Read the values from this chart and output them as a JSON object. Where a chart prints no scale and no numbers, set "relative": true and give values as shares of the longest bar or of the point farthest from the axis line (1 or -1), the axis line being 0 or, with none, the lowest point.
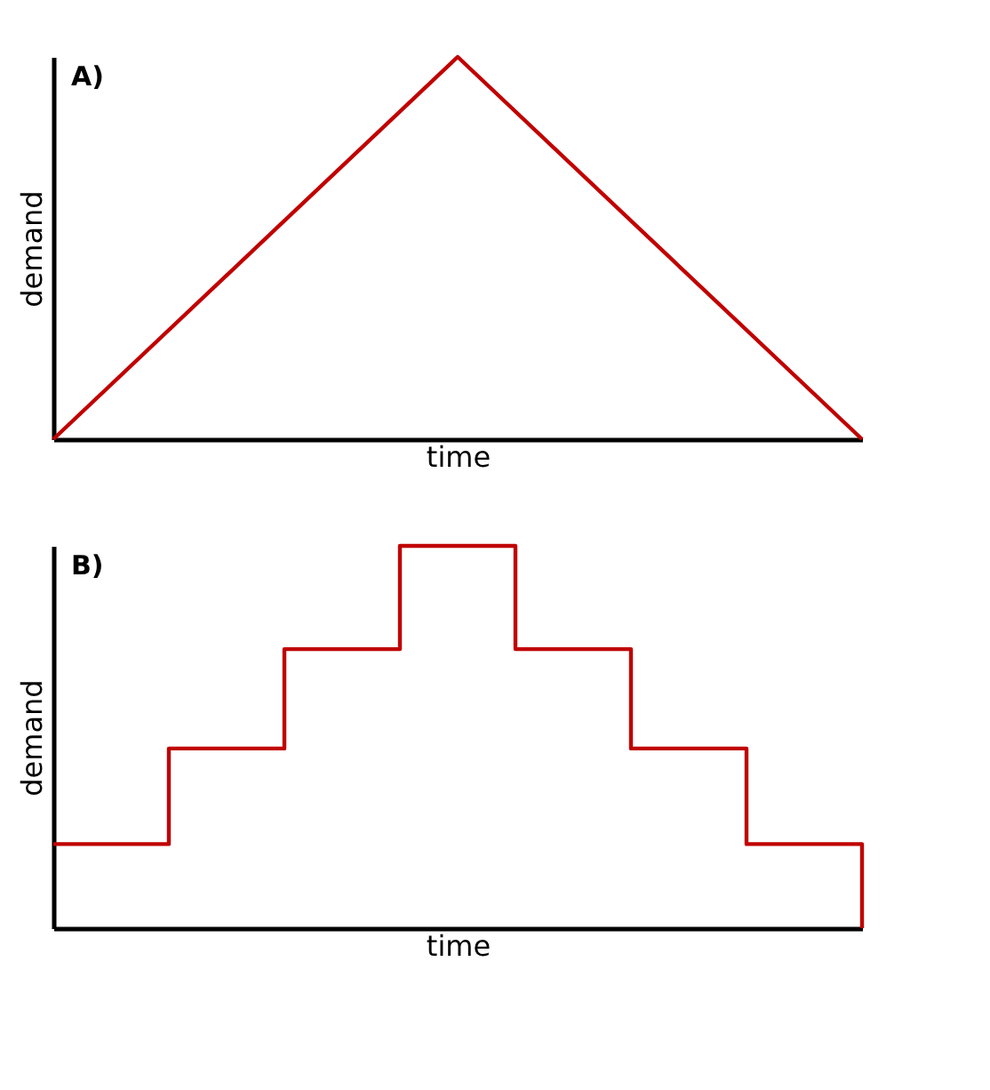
{
  "chart_data": [
    {
      "type": "line",
      "title": "A)",
      "xlabel": "time",
      "ylabel": "demand",
      "relative": true,
      "categories": [
        null,
        null,
        null
      ],
      "series": [
        {
          "color": "#c00000",
          "values": [
            0,
            1,
            0
          ]
        }
      ]
    },
    {
      "type": "step",
      "title": "B)",
      "xlabel": "time",
      "ylabel": "demand",
      "relative": true,
      "categories": [
        null,
        null,
        null,
        null,
        null,
        null,
        null,
        null
      ],
      "series": [
        {
          "color": "#c00000",
          "values": [
            0.22,
            0.47,
            0.73,
            1,
            0.73,
            0.47,
            0.22,
            0
          ]
        }
      ]
    }
  ]
}
